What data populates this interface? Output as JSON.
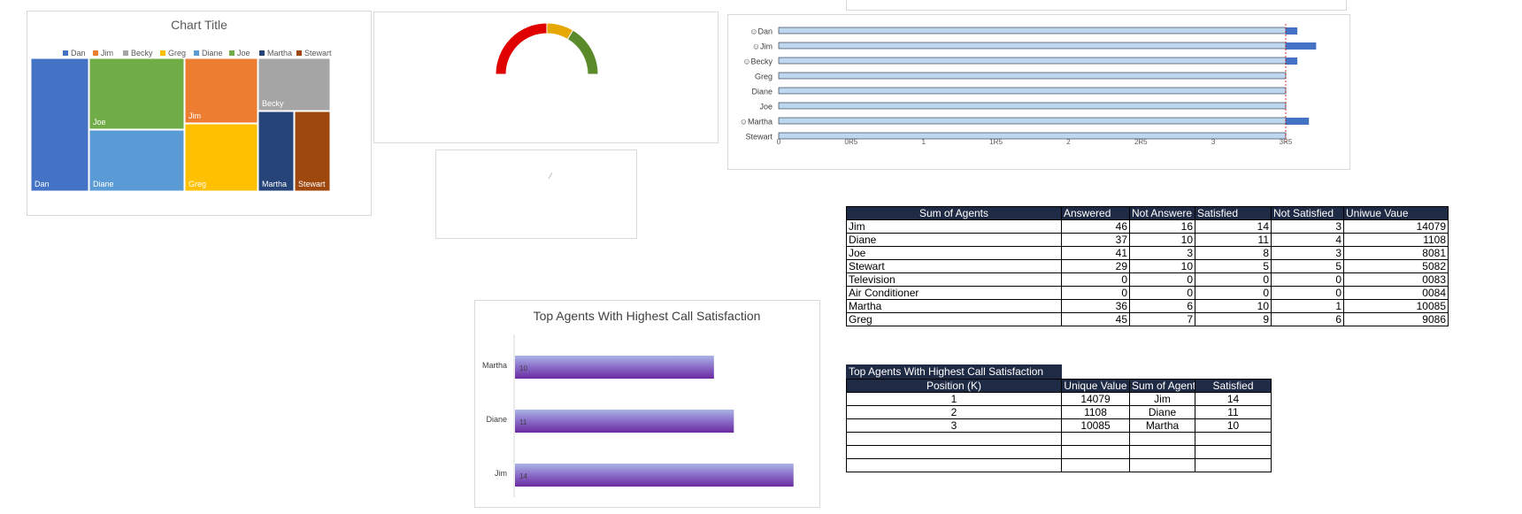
{
  "colors": {
    "dan": "#4472c4",
    "jim": "#ed7d31",
    "becky": "#a5a5a5",
    "greg": "#ffc000",
    "diane": "#5b9bd5",
    "joe": "#70ad47",
    "martha": "#264478",
    "stewart": "#9e480e",
    "table_header": "#1f2a44",
    "bar_fill": "#bdd7ee",
    "bar_small": "#4472c4"
  },
  "chart_data": [
    {
      "type": "treemap",
      "title": "Chart Title",
      "legend": [
        "Dan",
        "Jim",
        "Becky",
        "Greg",
        "Diane",
        "Joe",
        "Martha",
        "Stewart"
      ],
      "legend_position": "top",
      "tiles": [
        {
          "name": "Dan",
          "color_key": "dan"
        },
        {
          "name": "Joe",
          "color_key": "joe"
        },
        {
          "name": "Diane",
          "color_key": "diane"
        },
        {
          "name": "Jim",
          "color_key": "jim"
        },
        {
          "name": "Greg",
          "color_key": "greg"
        },
        {
          "name": "Becky",
          "color_key": "becky"
        },
        {
          "name": "Martha",
          "color_key": "martha"
        },
        {
          "name": "Stewart",
          "color_key": "stewart"
        }
      ]
    },
    {
      "type": "gauge",
      "segments": [
        {
          "color": "#e00000",
          "value": 50
        },
        {
          "color": "#e6a800",
          "value": 17
        },
        {
          "color": "#5a8a2a",
          "value": 33
        }
      ]
    },
    {
      "type": "bar",
      "orientation": "horizontal",
      "categories": [
        "☺Dan",
        "☺Jim",
        "☺Becky",
        "Greg",
        "Diane",
        "Joe",
        "☺Martha",
        "Stewart"
      ],
      "series": [
        {
          "values": [
            3.5,
            3.5,
            3.5,
            3.5,
            3.5,
            3.5,
            3.5,
            3.5
          ]
        },
        {
          "values": [
            0.08,
            0.21,
            0.08,
            0,
            0,
            0,
            0.16,
            0
          ]
        }
      ],
      "xlim": [
        0,
        3.5
      ],
      "xticks": [
        "0",
        "0R5",
        "1",
        "1R5",
        "2",
        "2R5",
        "3",
        "3R5"
      ],
      "xtick_values": [
        0,
        0.5,
        1,
        1.5,
        2,
        2.5,
        3,
        3.5
      ]
    },
    {
      "type": "bar",
      "orientation": "horizontal",
      "title": "Top Agents With Highest Call Satisfaction",
      "categories": [
        "Martha",
        "Diane",
        "Jim"
      ],
      "values": [
        10,
        11,
        14
      ],
      "xlim": [
        0,
        14.5
      ]
    }
  ],
  "pivot": {
    "headers": [
      "Sum of Agents",
      "Answered",
      "Not Answere",
      "Satisfied",
      "Not Satisfied",
      "Uniwue Vaue"
    ],
    "rows": [
      [
        "Jim",
        "46",
        "16",
        "14",
        "3",
        "14079"
      ],
      [
        "Diane",
        "37",
        "10",
        "11",
        "4",
        "1108"
      ],
      [
        "Joe",
        "41",
        "3",
        "8",
        "3",
        "8081"
      ],
      [
        "Stewart",
        "29",
        "10",
        "5",
        "5",
        "5082"
      ],
      [
        "Television",
        "0",
        "0",
        "0",
        "0",
        "0083"
      ],
      [
        "Air Conditioner",
        "0",
        "0",
        "0",
        "0",
        "0084"
      ],
      [
        "Martha",
        "36",
        "6",
        "10",
        "1",
        "10085"
      ],
      [
        "Greg",
        "45",
        "7",
        "9",
        "6",
        "9086"
      ]
    ]
  },
  "top_table": {
    "title": "Top Agents With Highest Call Satisfaction",
    "headers": [
      "Position (K)",
      "Unique Value",
      "Sum of Agents",
      "Satisfied"
    ],
    "rows": [
      [
        "1",
        "14079",
        "Jim",
        "14"
      ],
      [
        "2",
        "1108",
        "Diane",
        "11"
      ],
      [
        "3",
        "10085",
        "Martha",
        "10"
      ],
      [
        "",
        "",
        "",
        ""
      ],
      [
        "",
        "",
        "",
        ""
      ],
      [
        "",
        "",
        "",
        ""
      ]
    ]
  }
}
